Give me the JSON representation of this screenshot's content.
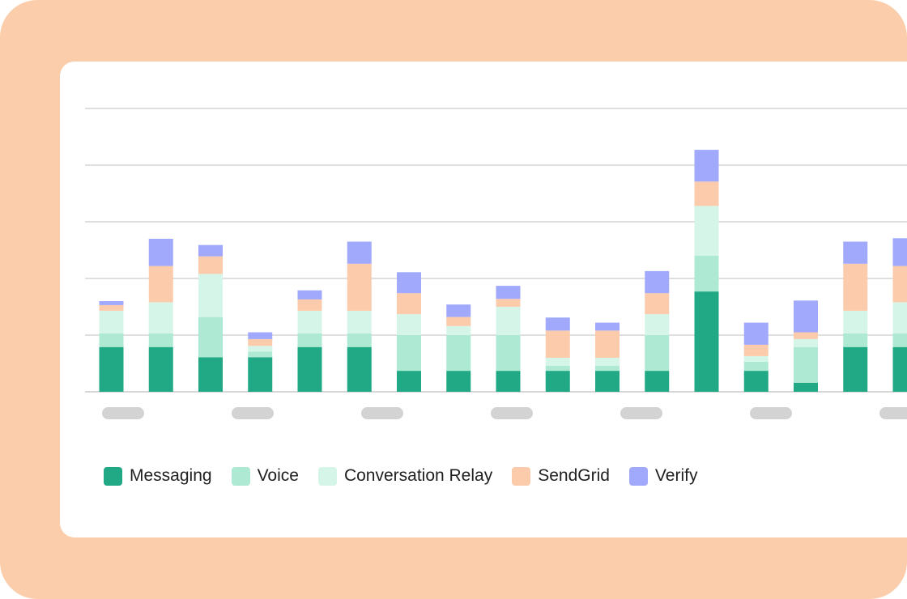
{
  "chart_data": {
    "type": "bar",
    "stacked": true,
    "grid": true,
    "ylim": [
      0,
      5
    ],
    "x_tick_labels_hidden": true,
    "categories": [
      "",
      "",
      "",
      "",
      "",
      "",
      "",
      "",
      "",
      "",
      "",
      "",
      "",
      "",
      "",
      "",
      ""
    ],
    "series": [
      {
        "name": "Messaging",
        "color": "#21a884",
        "values": [
          0.79,
          0.79,
          0.61,
          0.61,
          0.79,
          0.79,
          0.37,
          0.37,
          0.37,
          0.37,
          0.37,
          0.37,
          1.77,
          0.37,
          0.16,
          0.79,
          0.79
        ]
      },
      {
        "name": "Voice",
        "color": "#aee9d3",
        "values": [
          0.24,
          0.24,
          0.71,
          0.1,
          0.24,
          0.24,
          0.63,
          0.63,
          0.63,
          0.09,
          0.09,
          0.63,
          0.63,
          0.16,
          0.63,
          0.24,
          0.24
        ]
      },
      {
        "name": "Conversation Relay",
        "color": "#d5f5e8",
        "values": [
          0.4,
          0.55,
          0.76,
          0.1,
          0.4,
          0.4,
          0.37,
          0.16,
          0.5,
          0.14,
          0.14,
          0.37,
          0.88,
          0.1,
          0.14,
          0.4,
          0.55
        ]
      },
      {
        "name": "SendGrid",
        "color": "#fccbac",
        "values": [
          0.1,
          0.64,
          0.31,
          0.12,
          0.2,
          0.83,
          0.37,
          0.16,
          0.14,
          0.48,
          0.48,
          0.37,
          0.43,
          0.2,
          0.12,
          0.83,
          0.64
        ]
      },
      {
        "name": "Verify",
        "color": "#a0a9fb",
        "values": [
          0.07,
          0.48,
          0.2,
          0.12,
          0.16,
          0.39,
          0.37,
          0.22,
          0.23,
          0.23,
          0.14,
          0.39,
          0.56,
          0.39,
          0.56,
          0.39,
          0.49
        ]
      }
    ]
  },
  "colors": {
    "frame": "#fbcdab",
    "card": "#ffffff",
    "gridline": "#bfbfbf",
    "tick_placeholder": "#d3d3d3"
  }
}
